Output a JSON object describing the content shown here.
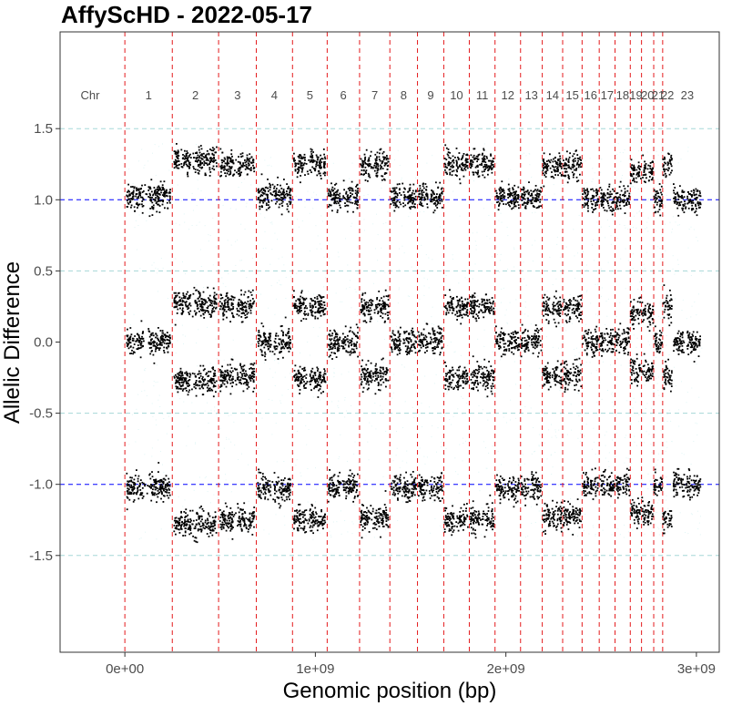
{
  "chart_data": {
    "type": "scatter",
    "title": "AffyScHD - 2022-05-17",
    "xlabel": "Genomic position (bp)",
    "ylabel": "Allelic Difference",
    "xlim": [
      -340000000,
      3120000000
    ],
    "ylim": [
      -2.18,
      2.18
    ],
    "x_ticks": [
      0,
      1000000000,
      2000000000,
      3000000000
    ],
    "x_tick_labels": [
      "0e+00",
      "1e+09",
      "2e+09",
      "3e+09"
    ],
    "y_ticks": [
      -1.5,
      -1.0,
      -0.5,
      0.0,
      0.5,
      1.0,
      1.5
    ],
    "y_tick_labels": [
      "-1.5",
      "-1.0",
      "-0.5",
      "0.0",
      "0.5",
      "1.0",
      "1.5"
    ],
    "grid": false,
    "reference_lines": {
      "blue_dashed_y": [
        -1.0,
        1.0
      ],
      "light_dashed_y": [
        -1.5,
        -0.5,
        0.5,
        1.5
      ]
    },
    "chromosome_header": "Chr",
    "chromosomes": [
      {
        "name": "1",
        "start": 0,
        "end": 249000000,
        "bands": [
          -1.02,
          0.0,
          1.02
        ]
      },
      {
        "name": "2",
        "start": 249000000,
        "end": 492000000,
        "bands": [
          -1.28,
          -0.27,
          0.27,
          1.28
        ]
      },
      {
        "name": "3",
        "start": 492000000,
        "end": 690000000,
        "bands": [
          -1.25,
          -0.25,
          0.25,
          1.25
        ]
      },
      {
        "name": "4",
        "start": 690000000,
        "end": 880000000,
        "bands": [
          -1.03,
          0.0,
          1.03
        ]
      },
      {
        "name": "5",
        "start": 880000000,
        "end": 1062000000,
        "bands": [
          -1.25,
          -0.25,
          0.25,
          1.25
        ]
      },
      {
        "name": "6",
        "start": 1062000000,
        "end": 1232000000,
        "bands": [
          -1.02,
          0.0,
          1.02
        ]
      },
      {
        "name": "7",
        "start": 1232000000,
        "end": 1391000000,
        "bands": [
          -1.24,
          -0.24,
          0.24,
          1.24
        ]
      },
      {
        "name": "8",
        "start": 1391000000,
        "end": 1536000000,
        "bands": [
          -1.02,
          0.0,
          1.02
        ]
      },
      {
        "name": "9",
        "start": 1536000000,
        "end": 1674000000,
        "bands": [
          -1.02,
          0.0,
          1.02
        ]
      },
      {
        "name": "10",
        "start": 1674000000,
        "end": 1808000000,
        "bands": [
          -1.25,
          -0.25,
          0.25,
          1.25
        ]
      },
      {
        "name": "11",
        "start": 1808000000,
        "end": 1943000000,
        "bands": [
          -1.25,
          -0.25,
          0.25,
          1.25
        ]
      },
      {
        "name": "12",
        "start": 1943000000,
        "end": 2077000000,
        "bands": [
          -1.02,
          0.0,
          1.02
        ]
      },
      {
        "name": "13",
        "start": 2077000000,
        "end": 2191000000,
        "bands": [
          -1.02,
          0.0,
          1.02
        ]
      },
      {
        "name": "14",
        "start": 2191000000,
        "end": 2298000000,
        "bands": [
          -1.23,
          -0.24,
          0.24,
          1.23
        ]
      },
      {
        "name": "15",
        "start": 2298000000,
        "end": 2400000000,
        "bands": [
          -1.23,
          -0.24,
          0.24,
          1.23
        ]
      },
      {
        "name": "16",
        "start": 2400000000,
        "end": 2490000000,
        "bands": [
          -1.0,
          0.0,
          1.0
        ]
      },
      {
        "name": "17",
        "start": 2490000000,
        "end": 2573000000,
        "bands": [
          -1.0,
          0.0,
          1.0
        ]
      },
      {
        "name": "18",
        "start": 2573000000,
        "end": 2653000000,
        "bands": [
          -1.0,
          0.0,
          1.0
        ]
      },
      {
        "name": "19",
        "start": 2653000000,
        "end": 2712000000,
        "bands": [
          -1.2,
          -0.2,
          0.2,
          1.2
        ]
      },
      {
        "name": "20",
        "start": 2712000000,
        "end": 2776000000,
        "bands": [
          -1.2,
          -0.2,
          0.2,
          1.2
        ]
      },
      {
        "name": "21",
        "start": 2776000000,
        "end": 2823000000,
        "bands": [
          -1.0,
          0.0,
          1.0
        ]
      },
      {
        "name": "22",
        "start": 2823000000,
        "end": 2874000000,
        "bands": [
          -1.25,
          -0.25,
          0.25,
          1.25
        ]
      },
      {
        "name": "23",
        "start": 2874000000,
        "end": 3030000000,
        "bands": [
          -1.0,
          0.0,
          1.0
        ]
      }
    ],
    "colors": {
      "points": "#000000",
      "background_points": "#e0f6f6",
      "chromosome_boundaries": "#e41a1c",
      "blue_lines": "#0000ff",
      "light_lines": "#a6d8d8",
      "panel_border": "#333333"
    }
  }
}
